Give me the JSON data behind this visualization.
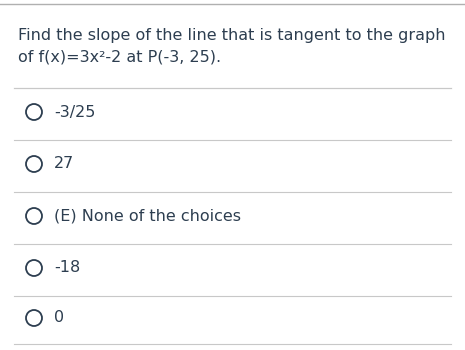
{
  "question_line1": "Find the slope of the line that is tangent to the graph",
  "question_line2": "of f(x)=3x²-2 at P(-3, 25).",
  "choices": [
    "-3/25",
    "27",
    "(E) None of the choices",
    "-18",
    "0"
  ],
  "bg_color": "#ffffff",
  "text_color": "#2d3e50",
  "line_color": "#c8c8c8",
  "top_bar_color": "#b0b0b0",
  "question_fontsize": 11.5,
  "choice_fontsize": 11.5
}
